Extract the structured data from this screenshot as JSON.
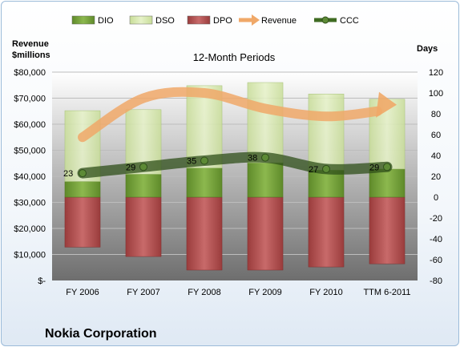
{
  "company": "Nokia Corporation",
  "chart_data": {
    "type": "bar",
    "title": "12-Month Periods",
    "ylabel_left": "Revenue\n$millions",
    "ylabel_right": "Days",
    "categories": [
      "FY 2006",
      "FY 2007",
      "FY 2008",
      "FY 2009",
      "FY 2010",
      "TTM 6-2011"
    ],
    "left_axis": {
      "range": [
        0,
        80000
      ],
      "ticks": [
        0,
        10000,
        20000,
        30000,
        40000,
        50000,
        60000,
        70000,
        80000
      ],
      "tick_labels": [
        "$-",
        "$10,000",
        "$20,000",
        "$30,000",
        "$40,000",
        "$50,000",
        "$60,000",
        "$70,000",
        "$80,000"
      ]
    },
    "right_axis": {
      "range": [
        -80,
        120
      ],
      "ticks": [
        -80,
        -60,
        -40,
        -20,
        0,
        20,
        40,
        60,
        80,
        100,
        120
      ],
      "tick_labels": [
        "-80",
        "-60",
        "-40",
        "-20",
        "0",
        "20",
        "40",
        "60",
        "80",
        "100",
        "120"
      ]
    },
    "series": [
      {
        "name": "DIO",
        "axis": "right",
        "kind": "bar",
        "color": "#77a03a",
        "values": [
          15,
          22,
          28,
          33,
          26,
          27
        ]
      },
      {
        "name": "DSO",
        "axis": "right",
        "kind": "bar-stacked",
        "color": "#d8eab2",
        "values": [
          68,
          62,
          79,
          77,
          73,
          67
        ]
      },
      {
        "name": "DPO",
        "axis": "right",
        "kind": "bar-negative",
        "color": "#b84f4f",
        "values": [
          -48,
          -57,
          -70,
          -70,
          -67,
          -64
        ]
      },
      {
        "name": "Revenue",
        "axis": "left",
        "kind": "line",
        "color": "#f0a868",
        "values": [
          55000,
          70000,
          72000,
          66000,
          63000,
          65000
        ]
      },
      {
        "name": "CCC",
        "axis": "right",
        "kind": "line",
        "color": "#3f6b22",
        "values": [
          23,
          29,
          35,
          38,
          27,
          29
        ],
        "labels": [
          "23",
          "29",
          "35",
          "38",
          "27",
          "29"
        ]
      }
    ],
    "legend": {
      "position": "top",
      "entries": [
        "DIO",
        "DSO",
        "DPO",
        "Revenue",
        "CCC"
      ]
    },
    "grid": true
  }
}
